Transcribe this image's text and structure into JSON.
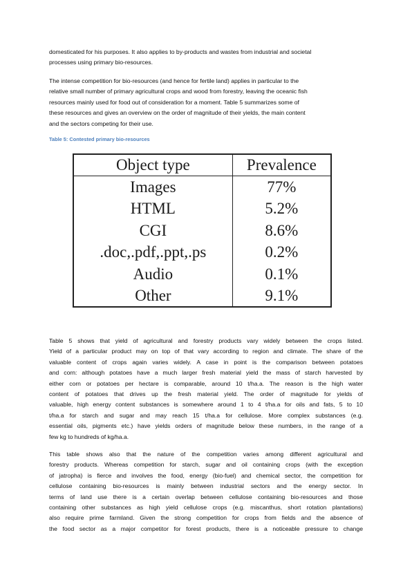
{
  "para1": [
    "domesticated for his purposes. It also applies to by-products and wastes from industrial and societal",
    "processes using primary bio-resources."
  ],
  "para2": [
    "The intense competition for bio-resources (and hence for fertile land) applies in particular to the",
    "relative small number of primary agricultural crops and wood from forestry, leaving the oceanic fish",
    "resources mainly used for food out of consideration for a moment. Table 5 summarizes some of",
    "these resources and gives an overview on the order of magnitude of their yields, the main content",
    "and the sectors competing for their use."
  ],
  "caption": "Table 5: Contested primary bio-resources",
  "table": {
    "headers": [
      "Object type",
      "Prevalence"
    ],
    "rows": [
      [
        "Images",
        "77%"
      ],
      [
        "HTML",
        "5.2%"
      ],
      [
        "CGI",
        "8.6%"
      ],
      [
        ".doc,.pdf,.ppt,.ps",
        "0.2%"
      ],
      [
        "Audio",
        "0.1%"
      ],
      [
        "Other",
        "9.1%"
      ]
    ]
  },
  "para3": [
    "Table 5 shows that yield of agricultural and forestry products vary widely between the crops listed.",
    "Yield of a particular product may on top of that vary according to region and climate. The share of the",
    "valuable content of crops again varies widely. A case in point is the comparison between potatoes",
    "and corn: although potatoes have a much larger fresh material yield the mass of starch harvested by",
    "either corn or potatoes per hectare is comparable, around 10 t/ha.a. The reason is the high water",
    "content of potatoes that drives up the fresh material yield. The order of magnitude for yields of",
    "valuable, high energy content substances is somewhere around 1 to 4 t/ha.a for oils and fats, 5 to 10",
    "t/ha.a for starch and sugar and may reach 15 t/ha.a for cellulose. More complex substances (e.g.",
    "essential oils, pigments etc.) have yields orders of magnitude below these numbers, in the range of a",
    "few kg to hundreds of kg/ha.a."
  ],
  "para4": [
    "This table shows also that the nature of the competition varies among different agricultural and",
    "forestry products. Whereas competition for starch, sugar and oil containing crops (with the exception",
    "of jatropha) is fierce and involves the food, energy (bio-fuel) and chemical sector, the competition for",
    "cellulose containing bio-resources is mainly between industrial sectors and the energy sector. In",
    "terms of land use there is a certain overlap between cellulose containing bio-resources and those",
    "containing other substances as high yield cellulose crops (e.g. miscanthus, short rotation plantations)",
    "also require prime farmland. Given the strong competition for crops from fields and the absence of",
    "the food sector as a major competitor for forest products, there is a noticeable pressure to change"
  ]
}
